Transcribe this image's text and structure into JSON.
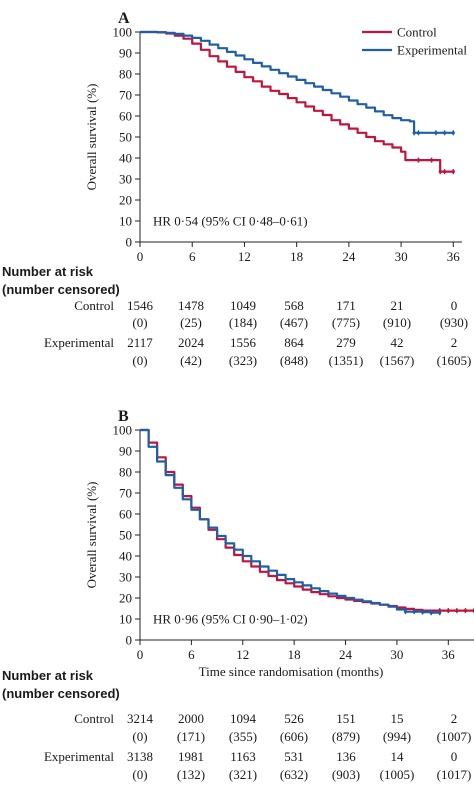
{
  "chart_data": [
    {
      "panel_label": "A",
      "type": "line",
      "ylabel": "Overall survival (%)",
      "xlabel": "",
      "xlim": [
        0,
        37
      ],
      "ylim": [
        0,
        100
      ],
      "xticks": [
        0,
        6,
        12,
        18,
        24,
        30,
        36
      ],
      "yticks": [
        0,
        10,
        20,
        30,
        40,
        50,
        60,
        70,
        80,
        90,
        100
      ],
      "grid": false,
      "legend_position": "top-right",
      "annotation": "HR 0·54 (95% CI 0·48–0·61)",
      "series": [
        {
          "name": "Control",
          "color": "#c0143c",
          "x": [
            0,
            2,
            3,
            4,
            5,
            6,
            7,
            8,
            9,
            10,
            11,
            12,
            13,
            14,
            15,
            16,
            17,
            18,
            19,
            20,
            21,
            22,
            23,
            24,
            25,
            26,
            27,
            28,
            29,
            30,
            30.5,
            32,
            33.5,
            34.5,
            35,
            36
          ],
          "y": [
            100,
            99.8,
            99.3,
            98.3,
            96.8,
            94.5,
            91.5,
            88.5,
            86,
            83.5,
            81,
            78.5,
            76.5,
            74,
            72,
            70.5,
            68.5,
            66.5,
            64.5,
            62.5,
            60.5,
            58,
            56,
            54,
            52,
            50,
            48,
            46.5,
            45,
            43,
            39,
            39,
            39,
            33.5,
            33.5,
            33.5
          ]
        },
        {
          "name": "Experimental",
          "color": "#1f5fa8",
          "x": [
            0,
            2,
            3,
            4,
            5,
            6,
            7,
            8,
            9,
            10,
            11,
            12,
            13,
            14,
            15,
            16,
            17,
            18,
            19,
            20,
            21,
            22,
            23,
            24,
            25,
            26,
            27,
            28,
            29,
            30,
            31,
            31.5,
            32,
            34,
            35,
            36
          ],
          "y": [
            100,
            99.9,
            99.6,
            99.1,
            98.3,
            97.2,
            95.8,
            94,
            92.3,
            90.5,
            88.8,
            87,
            85.3,
            83.6,
            82,
            80.4,
            78.8,
            77.2,
            75.6,
            74,
            72.4,
            70.8,
            69.2,
            67.4,
            65.6,
            64,
            62.2,
            60.4,
            59,
            58,
            57.5,
            52,
            52,
            52,
            52,
            52
          ]
        }
      ]
    },
    {
      "panel_label": "B",
      "type": "line",
      "ylabel": "Overall survival (%)",
      "xlabel": "Time since randomisation (months)",
      "xlim": [
        0,
        39
      ],
      "ylim": [
        0,
        100
      ],
      "xticks": [
        0,
        6,
        12,
        18,
        24,
        30,
        36
      ],
      "yticks": [
        0,
        10,
        20,
        30,
        40,
        50,
        60,
        70,
        80,
        90,
        100
      ],
      "grid": false,
      "annotation": "HR 0·96 (95% CI 0·90–1·02)",
      "series": [
        {
          "name": "Control",
          "color": "#c0143c",
          "x": [
            0,
            1,
            2,
            3,
            4,
            5,
            6,
            7,
            8,
            9,
            10,
            11,
            12,
            13,
            14,
            15,
            16,
            17,
            18,
            19,
            20,
            21,
            22,
            23,
            24,
            25,
            26,
            27,
            28,
            29,
            30,
            31,
            32,
            33,
            34,
            35,
            36,
            37,
            38,
            39
          ],
          "y": [
            100,
            94,
            87,
            80,
            74,
            68.5,
            63,
            57.5,
            52.5,
            48,
            44,
            40.5,
            37.5,
            35,
            32.5,
            30.5,
            28.5,
            27,
            25.5,
            24,
            22.8,
            21.8,
            20.8,
            20,
            19.3,
            18.6,
            18,
            17.4,
            16.8,
            16.2,
            15.5,
            14.8,
            14.4,
            14,
            14,
            14,
            14,
            14,
            14,
            14
          ]
        },
        {
          "name": "Experimental",
          "color": "#1f5fa8",
          "x": [
            0,
            1,
            2,
            3,
            4,
            5,
            6,
            7,
            8,
            9,
            10,
            11,
            12,
            13,
            14,
            15,
            16,
            17,
            18,
            19,
            20,
            21,
            22,
            23,
            24,
            25,
            26,
            27,
            28,
            29,
            30,
            31,
            32,
            33,
            34,
            35
          ],
          "y": [
            100,
            92,
            85,
            78.5,
            72.5,
            67,
            62,
            57.5,
            53.5,
            49.5,
            46,
            43,
            40,
            37.5,
            35,
            33,
            31,
            29,
            27.5,
            26,
            24.6,
            23.3,
            22.1,
            21,
            20,
            19.2,
            18.4,
            17.6,
            16.8,
            15.9,
            14.5,
            13.5,
            13.5,
            13.3,
            13,
            13
          ]
        }
      ]
    }
  ],
  "risk_tables": [
    {
      "title_line1": "Number at risk",
      "title_line2": "(number censored)",
      "rows": [
        {
          "label": "Control",
          "at_risk": [
            "1546",
            "1478",
            "1049",
            "568",
            "171",
            "21",
            "0"
          ],
          "censored": [
            "(0)",
            "(25)",
            "(184)",
            "(467)",
            "(775)",
            "(910)",
            "(930)"
          ]
        },
        {
          "label": "Experimental",
          "at_risk": [
            "2117",
            "2024",
            "1556",
            "864",
            "279",
            "42",
            "2"
          ],
          "censored": [
            "(0)",
            "(42)",
            "(323)",
            "(848)",
            "(1351)",
            "(1567)",
            "(1605)"
          ]
        }
      ]
    },
    {
      "title_line1": "Number at risk",
      "title_line2": "(number censored)",
      "rows": [
        {
          "label": "Control",
          "at_risk": [
            "3214",
            "2000",
            "1094",
            "526",
            "151",
            "15",
            "2"
          ],
          "censored": [
            "(0)",
            "(171)",
            "(355)",
            "(606)",
            "(879)",
            "(994)",
            "(1007)"
          ]
        },
        {
          "label": "Experimental",
          "at_risk": [
            "3138",
            "1981",
            "1163",
            "531",
            "136",
            "14",
            "0"
          ],
          "censored": [
            "(0)",
            "(132)",
            "(321)",
            "(632)",
            "(903)",
            "(1005)",
            "(1017)"
          ]
        }
      ]
    }
  ]
}
